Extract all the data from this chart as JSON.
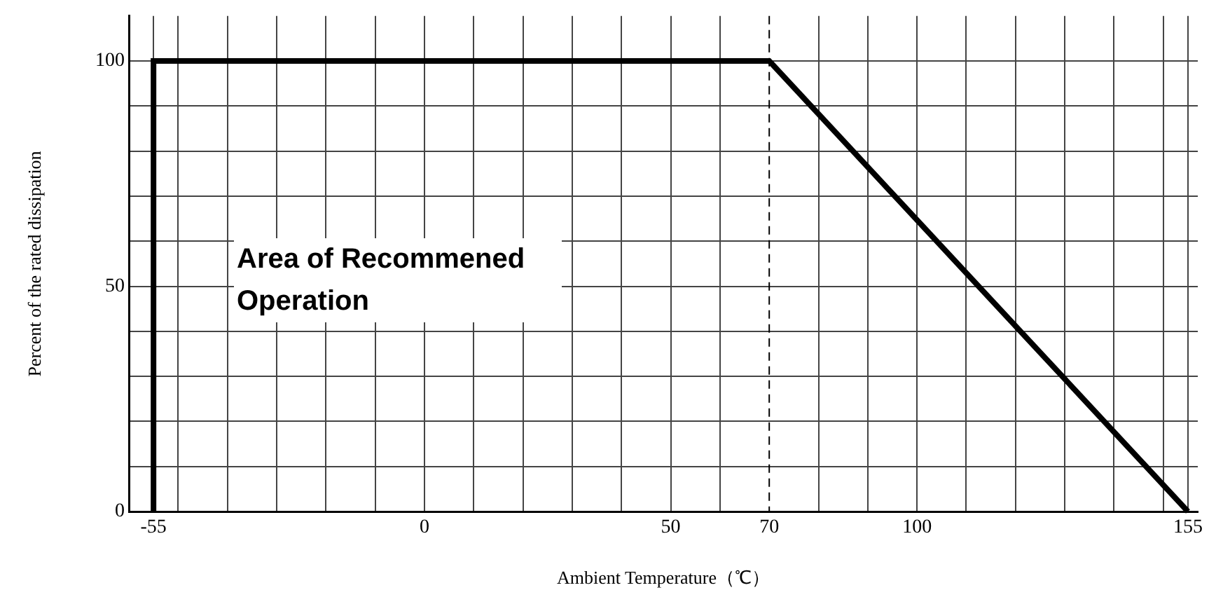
{
  "chart_data": {
    "type": "line",
    "xlabel": "Ambient Temperature（℃）",
    "ylabel": "Percent of the rated dissipation",
    "x": [
      -55,
      -55,
      70,
      155
    ],
    "series": [
      {
        "color": "#000000",
        "values": [
          0,
          100,
          100,
          0
        ]
      }
    ],
    "xlim": [
      -60,
      157
    ],
    "xticks": [
      {
        "value": -60,
        "label": null
      },
      -55,
      {
        "value": -50,
        "label": null
      },
      {
        "value": -40,
        "label": null
      },
      {
        "value": -30,
        "label": null
      },
      {
        "value": -20,
        "label": null
      },
      {
        "value": -10,
        "label": null
      },
      0,
      {
        "value": 10,
        "label": null
      },
      {
        "value": 20,
        "label": null
      },
      {
        "value": 30,
        "label": null
      },
      {
        "value": 40,
        "label": null
      },
      50,
      {
        "value": 60,
        "label": null
      },
      70,
      {
        "value": 80,
        "label": null
      },
      {
        "value": 90,
        "label": null
      },
      100,
      {
        "value": 110,
        "label": null
      },
      {
        "value": 120,
        "label": null
      },
      {
        "value": 130,
        "label": null
      },
      {
        "value": 140,
        "label": null
      },
      {
        "value": 150,
        "label": null
      },
      155
    ],
    "ylim": [
      0,
      110
    ],
    "yticks": [
      0,
      {
        "value": 10,
        "label": null
      },
      {
        "value": 20,
        "label": null
      },
      {
        "value": 30,
        "label": null
      },
      {
        "value": 40,
        "label": null
      },
      50,
      {
        "value": 60,
        "label": null
      },
      {
        "value": 70,
        "label": null
      },
      {
        "value": 80,
        "label": null
      },
      {
        "value": 90,
        "label": null
      },
      100
    ],
    "ref_lines": [
      {
        "axis": "x",
        "value": 70,
        "line_style": "dashed",
        "color": "#000000"
      }
    ],
    "annotations": [
      "Area of Recommened Operation"
    ],
    "grid": true,
    "legend": false,
    "marker": "none",
    "line_style": "solid"
  }
}
